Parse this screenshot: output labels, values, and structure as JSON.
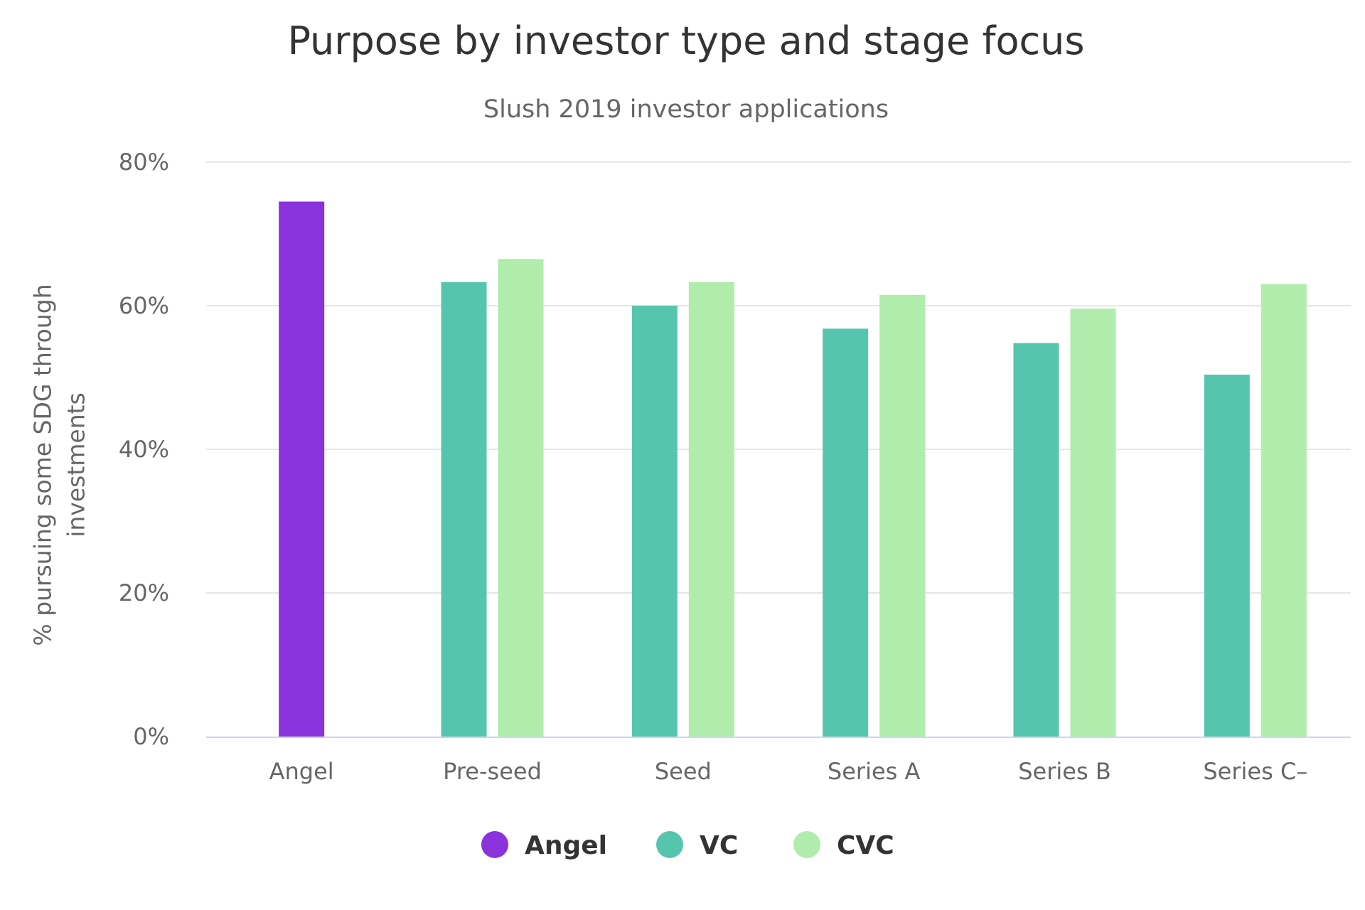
{
  "chart_data": {
    "type": "bar",
    "title": "Purpose by investor type and stage focus",
    "subtitle": "Slush 2019 investor applications",
    "ylabel": "% pursuing some SDG through investments",
    "ylabel_lines": [
      "% pursuing some SDG through",
      "investments"
    ],
    "ylim": [
      0,
      80
    ],
    "yticks": [
      0,
      20,
      40,
      60,
      80
    ],
    "ytick_labels": [
      "0%",
      "20%",
      "40%",
      "60%",
      "80%"
    ],
    "grid": true,
    "legend_position": "bottom-center",
    "categories": [
      "Angel",
      "Pre-seed",
      "Seed",
      "Series A",
      "Series B",
      "Series C–"
    ],
    "series": [
      {
        "name": "Angel",
        "color": "#8a32dc",
        "values": [
          74.5,
          null,
          null,
          null,
          null,
          null
        ]
      },
      {
        "name": "VC",
        "color": "#55c6ad",
        "values": [
          null,
          63.3,
          60.0,
          56.8,
          54.8,
          50.4
        ]
      },
      {
        "name": "CVC",
        "color": "#b0ecac",
        "values": [
          null,
          66.5,
          63.3,
          61.5,
          59.6,
          63.0
        ]
      }
    ]
  }
}
